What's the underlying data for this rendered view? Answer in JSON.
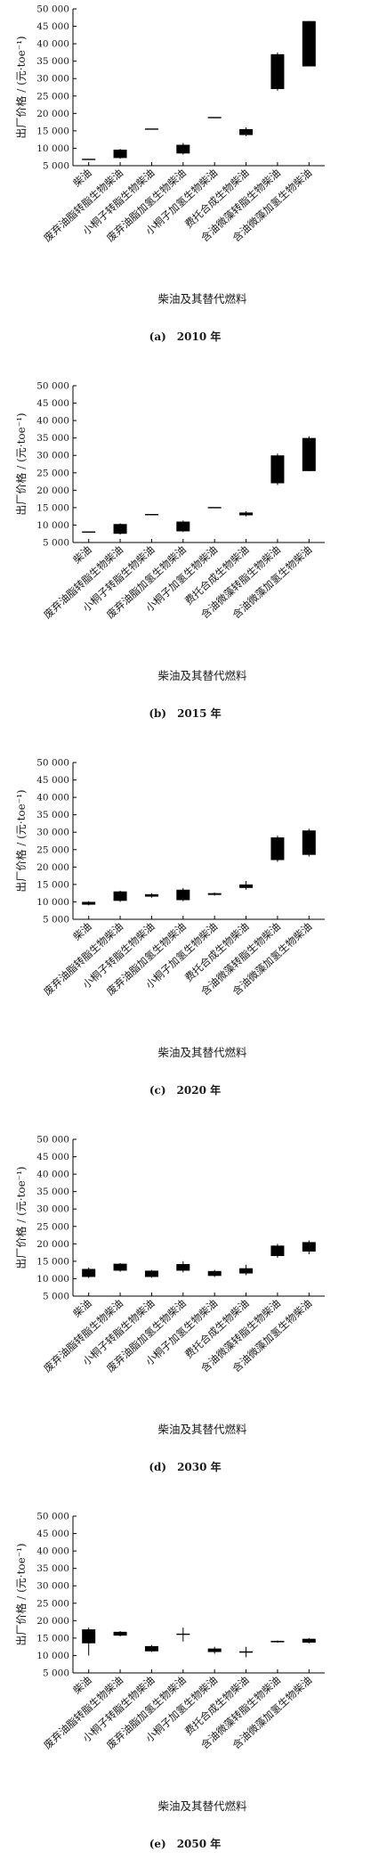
{
  "chart_data": [
    {
      "type": "box",
      "caption": "(a)　2010 年",
      "ylabel": "出厂价格 / (元·toe⁻¹)",
      "xlabel": "柴油及其替代燃料",
      "ylim": [
        5000,
        50000
      ],
      "yticks": [
        "5 000",
        "10 000",
        "15 000",
        "20 000",
        "25 000",
        "30 000",
        "35 000",
        "40 000",
        "45 000",
        "50 000"
      ],
      "categories": [
        "柴油",
        "废弃油脂转脂生物柴油",
        "小桐子转脂生物柴油",
        "废弃油脂加氢生物柴油",
        "小桐子加氢生物柴油",
        "费托合成生物柴油",
        "含油微藻转脂生物柴油",
        "含油微藻加氢生物柴油"
      ],
      "boxes": [
        {
          "low": 6800,
          "q1": 6800,
          "q3": 6800,
          "high": 6800
        },
        {
          "low": 7000,
          "q1": 7200,
          "q3": 9600,
          "high": 9800
        },
        {
          "low": 15500,
          "q1": 15500,
          "q3": 15500,
          "high": 15500
        },
        {
          "low": 8200,
          "q1": 8500,
          "q3": 11000,
          "high": 11500
        },
        {
          "low": 18800,
          "q1": 18800,
          "q3": 18800,
          "high": 18800
        },
        {
          "low": 13500,
          "q1": 13800,
          "q3": 15500,
          "high": 16000
        },
        {
          "low": 26500,
          "q1": 27000,
          "q3": 37000,
          "high": 37500
        },
        {
          "low": 33500,
          "q1": 33500,
          "q3": 46500,
          "high": 46500
        }
      ]
    },
    {
      "type": "box",
      "caption": "(b)　2015 年",
      "ylabel": "出厂价格 / (元·toe⁻¹)",
      "xlabel": "柴油及其替代燃料",
      "ylim": [
        5000,
        50000
      ],
      "yticks": [
        "5 000",
        "10 000",
        "15 000",
        "20 000",
        "25 000",
        "30 000",
        "35 000",
        "40 000",
        "45 000",
        "50 000"
      ],
      "categories": [
        "柴油",
        "废弃油脂转脂生物柴油",
        "小桐子转脂生物柴油",
        "废弃油脂加氢生物柴油",
        "小桐子加氢生物柴油",
        "费托合成生物柴油",
        "含油微藻转脂生物柴油",
        "含油微藻加氢生物柴油"
      ],
      "boxes": [
        {
          "low": 8000,
          "q1": 8000,
          "q3": 8000,
          "high": 8000
        },
        {
          "low": 7300,
          "q1": 7500,
          "q3": 10300,
          "high": 10500
        },
        {
          "low": 13000,
          "q1": 13000,
          "q3": 13000,
          "high": 13000
        },
        {
          "low": 8000,
          "q1": 8200,
          "q3": 11000,
          "high": 11300
        },
        {
          "low": 15000,
          "q1": 15000,
          "q3": 15000,
          "high": 15000
        },
        {
          "low": 12500,
          "q1": 12800,
          "q3": 13600,
          "high": 14000
        },
        {
          "low": 21500,
          "q1": 22000,
          "q3": 30000,
          "high": 30500
        },
        {
          "low": 25500,
          "q1": 25500,
          "q3": 35000,
          "high": 35500
        }
      ]
    },
    {
      "type": "box",
      "caption": "(c)　2020 年",
      "ylabel": "出厂价格 / (元·toe⁻¹)",
      "xlabel": "柴油及其替代燃料",
      "ylim": [
        5000,
        50000
      ],
      "yticks": [
        "5 000",
        "10 000",
        "15 000",
        "20 000",
        "25 000",
        "30 000",
        "35 000",
        "40 000",
        "45 000",
        "50 000"
      ],
      "categories": [
        "柴油",
        "废弃油脂转脂生物柴油",
        "小桐子转脂生物柴油",
        "废弃油脂加氢生物柴油",
        "小桐子加氢生物柴油",
        "费托合成生物柴油",
        "含油微藻转脂生物柴油",
        "含油微藻加氢生物柴油"
      ],
      "boxes": [
        {
          "low": 9000,
          "q1": 9200,
          "q3": 10000,
          "high": 10200
        },
        {
          "low": 10000,
          "q1": 10300,
          "q3": 13000,
          "high": 13200
        },
        {
          "low": 11200,
          "q1": 11500,
          "q3": 12200,
          "high": 12500
        },
        {
          "low": 10200,
          "q1": 10500,
          "q3": 13500,
          "high": 14000
        },
        {
          "low": 11800,
          "q1": 12000,
          "q3": 12500,
          "high": 12700
        },
        {
          "low": 13500,
          "q1": 14000,
          "q3": 15000,
          "high": 16000
        },
        {
          "low": 21500,
          "q1": 22000,
          "q3": 28500,
          "high": 29000
        },
        {
          "low": 23000,
          "q1": 23500,
          "q3": 30500,
          "high": 31000
        }
      ]
    },
    {
      "type": "box",
      "caption": "(d)　2030 年",
      "ylabel": "出厂价格 / (元·toe⁻¹)",
      "xlabel": "柴油及其替代燃料",
      "ylim": [
        5000,
        50000
      ],
      "yticks": [
        "5 000",
        "10 000",
        "15 000",
        "20 000",
        "25 000",
        "30 000",
        "35 000",
        "40 000",
        "45 000",
        "50 000"
      ],
      "categories": [
        "柴油",
        "废弃油脂转脂生物柴油",
        "小桐子转脂生物柴油",
        "废弃油脂加氢生物柴油",
        "小桐子加氢生物柴油",
        "费托合成生物柴油",
        "含油微藻转脂生物柴油",
        "含油微藻加氢生物柴油"
      ],
      "boxes": [
        {
          "low": 10200,
          "q1": 10500,
          "q3": 12800,
          "high": 13200
        },
        {
          "low": 12000,
          "q1": 12300,
          "q3": 14300,
          "high": 14500
        },
        {
          "low": 10300,
          "q1": 10500,
          "q3": 12300,
          "high": 12500
        },
        {
          "low": 11800,
          "q1": 12300,
          "q3": 14200,
          "high": 15000
        },
        {
          "low": 10500,
          "q1": 10800,
          "q3": 12200,
          "high": 12500
        },
        {
          "low": 11000,
          "q1": 11500,
          "q3": 13000,
          "high": 14000
        },
        {
          "low": 16000,
          "q1": 16500,
          "q3": 19500,
          "high": 20000
        },
        {
          "low": 17000,
          "q1": 17800,
          "q3": 20500,
          "high": 21000
        }
      ]
    },
    {
      "type": "box",
      "caption": "(e)　2050 年",
      "ylabel": "出厂价格 / (元·toe⁻¹)",
      "xlabel": "柴油及其替代燃料",
      "ylim": [
        5000,
        50000
      ],
      "yticks": [
        "5 000",
        "10 000",
        "15 000",
        "20 000",
        "25 000",
        "30 000",
        "35 000",
        "40 000",
        "45 000",
        "50 000"
      ],
      "categories": [
        "柴油",
        "废弃油脂转脂生物柴油",
        "小桐子转脂生物柴油",
        "废弃油脂加氢生物柴油",
        "小桐子加氢生物柴油",
        "费托合成生物柴油",
        "含油微藻转脂生物柴油",
        "含油微藻加氢生物柴油"
      ],
      "boxes": [
        {
          "low": 10000,
          "q1": 13500,
          "q3": 17500,
          "high": 18000
        },
        {
          "low": 15500,
          "q1": 15700,
          "q3": 16800,
          "high": 17000
        },
        {
          "low": 11000,
          "q1": 11200,
          "q3": 12700,
          "high": 13000
        },
        {
          "low": 14000,
          "q1": 15900,
          "q3": 16100,
          "high": 18000
        },
        {
          "low": 10500,
          "q1": 11000,
          "q3": 12000,
          "high": 12500
        },
        {
          "low": 9500,
          "q1": 10800,
          "q3": 11200,
          "high": 12500
        },
        {
          "low": 13700,
          "q1": 13800,
          "q3": 14200,
          "high": 14300
        },
        {
          "low": 13500,
          "q1": 13700,
          "q3": 14800,
          "high": 15000
        }
      ]
    }
  ]
}
